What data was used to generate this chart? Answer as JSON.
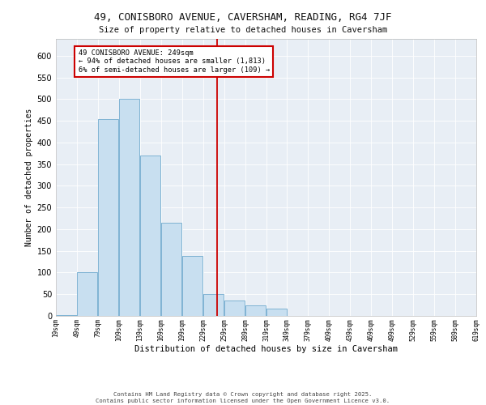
{
  "title_line1": "49, CONISBORO AVENUE, CAVERSHAM, READING, RG4 7JF",
  "title_line2": "Size of property relative to detached houses in Caversham",
  "xlabel": "Distribution of detached houses by size in Caversham",
  "ylabel": "Number of detached properties",
  "bar_edges": [
    19,
    49,
    79,
    109,
    139,
    169,
    199,
    229,
    259,
    289,
    319,
    349,
    379,
    409,
    439,
    469,
    499,
    529,
    559,
    589,
    619
  ],
  "bar_heights": [
    2,
    101,
    455,
    500,
    370,
    215,
    138,
    50,
    35,
    25,
    17,
    0,
    0,
    0,
    0,
    0,
    0,
    0,
    0,
    0
  ],
  "bar_color": "#c8dff0",
  "bar_edge_color": "#7fb3d3",
  "vline_x": 249,
  "vline_color": "#cc0000",
  "annotation_text": "49 CONISBORO AVENUE: 249sqm\n← 94% of detached houses are smaller (1,813)\n6% of semi-detached houses are larger (109) →",
  "annotation_box_color": "#cc0000",
  "ylim": [
    0,
    640
  ],
  "yticks": [
    0,
    50,
    100,
    150,
    200,
    250,
    300,
    350,
    400,
    450,
    500,
    550,
    600
  ],
  "background_color": "#e8eef5",
  "footer_text": "Contains HM Land Registry data © Crown copyright and database right 2025.\nContains public sector information licensed under the Open Government Licence v3.0.",
  "tick_labels": [
    "19sqm",
    "49sqm",
    "79sqm",
    "109sqm",
    "139sqm",
    "169sqm",
    "199sqm",
    "229sqm",
    "259sqm",
    "289sqm",
    "319sqm",
    "349sqm",
    "379sqm",
    "409sqm",
    "439sqm",
    "469sqm",
    "499sqm",
    "529sqm",
    "559sqm",
    "589sqm",
    "619sqm"
  ]
}
